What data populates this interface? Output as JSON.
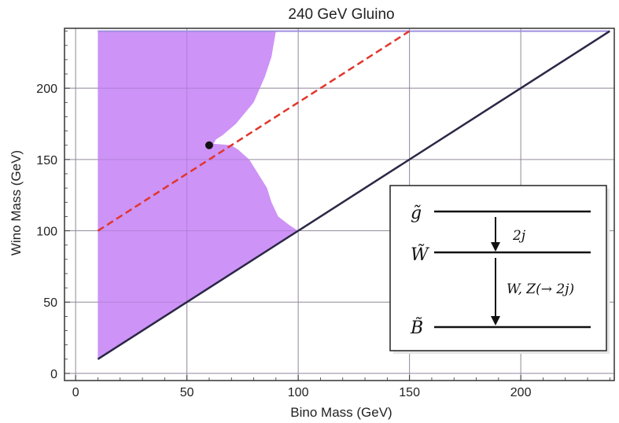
{
  "chart_data": {
    "type": "area",
    "title": "240 GeV Gluino",
    "xlabel": "Bino Mass (GeV)",
    "ylabel": "Wino Mass (GeV)",
    "xlim": [
      -5,
      242
    ],
    "ylim": [
      -5,
      242
    ],
    "xticks": [
      0,
      50,
      100,
      150,
      200
    ],
    "yticks": [
      0,
      50,
      100,
      150,
      200
    ],
    "grid": true,
    "colors": {
      "excluded_fill": "#c98af5",
      "diagonal": "#2b2745",
      "dashed": "#e0362c",
      "top_boundary": "#9f8fe0",
      "point": "#111111",
      "grid": "#999999"
    },
    "series": [
      {
        "role": "excluded-region",
        "points": [
          [
            10,
            240
          ],
          [
            90,
            240
          ],
          [
            88,
            222
          ],
          [
            85,
            208
          ],
          [
            80,
            190
          ],
          [
            72,
            175
          ],
          [
            66,
            167
          ],
          [
            63,
            164
          ],
          [
            62,
            161
          ],
          [
            66,
            160.5
          ],
          [
            70,
            160
          ],
          [
            73,
            157
          ],
          [
            78,
            150
          ],
          [
            82,
            140
          ],
          [
            86,
            130
          ],
          [
            88,
            120
          ],
          [
            91,
            110
          ],
          [
            96,
            104
          ],
          [
            100,
            100
          ],
          [
            10,
            10
          ]
        ]
      },
      {
        "role": "diagonal-line",
        "points": [
          [
            10,
            10
          ],
          [
            240,
            240
          ]
        ]
      },
      {
        "role": "dashed-line",
        "points": [
          [
            10,
            100
          ],
          [
            150,
            240
          ]
        ]
      },
      {
        "role": "top-boundary",
        "points": [
          [
            10,
            240
          ],
          [
            240,
            240
          ]
        ]
      },
      {
        "role": "marked-point",
        "points": [
          [
            60,
            160
          ]
        ]
      }
    ],
    "inset": {
      "levels": [
        "g̃",
        "W̃",
        "B̃"
      ],
      "decay_upper": "2j",
      "decay_lower": "W, Z(→ 2j)"
    }
  }
}
